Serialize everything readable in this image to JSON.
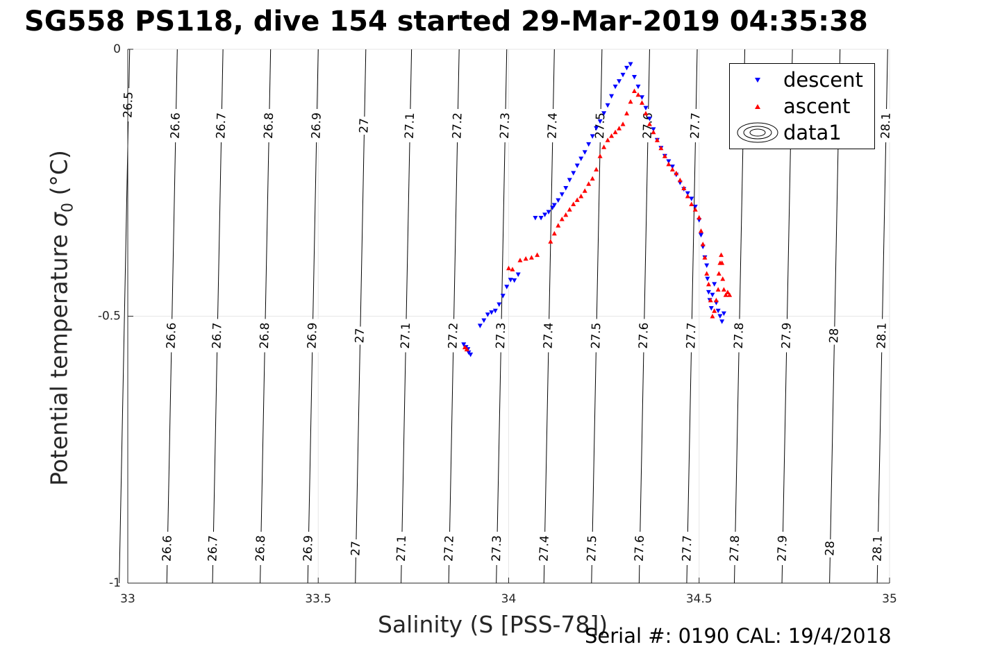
{
  "title": "SG558 PS118, dive 154 started 29-Mar-2019 04:35:38",
  "xlabel": "Salinity (S [PSS-78])",
  "ylabel": "Potential temperature σ₀ (°C)",
  "serial_text": "Serial #: 0190  CAL: 19/4/2018",
  "chart_data": {
    "type": "scatter",
    "xlim": [
      33,
      35
    ],
    "ylim": [
      -1,
      0
    ],
    "x_ticks": [
      "33",
      "33.5",
      "34",
      "34.5",
      "35"
    ],
    "y_ticks": [
      "0",
      "-0.5",
      "-1"
    ],
    "grid": true,
    "legend": {
      "position": "top-right",
      "entries": [
        "descent",
        "ascent",
        "data1"
      ]
    },
    "colors": {
      "descent": "#0000ff",
      "ascent": "#ff0000",
      "contour": "#000000",
      "grid": "#e6e6e6"
    },
    "density_contours": {
      "levels": [
        "26.5",
        "26.6",
        "26.7",
        "26.8",
        "26.9",
        "27",
        "27.1",
        "27.2",
        "27.3",
        "27.4",
        "27.5",
        "27.6",
        "27.7",
        "27.8",
        "27.9",
        "28",
        "28.1"
      ],
      "lines": [
        {
          "label": "26.5",
          "top_x": 33.005,
          "label_y": [
            -0.24
          ]
        },
        {
          "label": "26.6",
          "top_x": 33.13,
          "label_y": [
            -0.28,
            -0.73,
            -1.28
          ]
        },
        {
          "label": "26.7",
          "top_x": 33.25,
          "label_y": [
            -0.28,
            -0.73,
            -1.28
          ]
        },
        {
          "label": "26.8",
          "top_x": 33.375,
          "label_y": [
            -0.28,
            -0.73,
            -1.28
          ]
        },
        {
          "label": "26.9",
          "top_x": 33.5,
          "label_y": [
            -0.28,
            -0.73,
            -1.28
          ]
        },
        {
          "label": "27",
          "top_x": 33.625,
          "label_y": [
            -0.28,
            -0.73,
            -1.28
          ]
        },
        {
          "label": "27.1",
          "top_x": 33.745,
          "label_y": [
            -0.28,
            -0.73,
            -1.28
          ]
        },
        {
          "label": "27.2",
          "top_x": 33.87,
          "label_y": [
            -0.28,
            -0.73,
            -1.28
          ]
        },
        {
          "label": "27.3",
          "top_x": 33.995,
          "label_y": [
            -0.28,
            -0.73,
            -1.28
          ]
        },
        {
          "label": "27.4",
          "top_x": 34.12,
          "label_y": [
            -0.28,
            -0.73,
            -1.28
          ]
        },
        {
          "label": "27.5",
          "top_x": 34.245,
          "label_y": [
            -0.28,
            -0.73,
            -1.28
          ]
        },
        {
          "label": "27.6",
          "top_x": 34.37,
          "label_y": [
            -0.28,
            -0.73,
            -1.28
          ]
        },
        {
          "label": "27.7",
          "top_x": 34.495,
          "label_y": [
            -0.28,
            -0.73,
            -1.28
          ]
        },
        {
          "label": "27.8",
          "top_x": 34.62,
          "label_y": [
            -0.73,
            -1.28
          ]
        },
        {
          "label": "27.9",
          "top_x": 34.745,
          "label_y": [
            -0.73,
            -1.28
          ]
        },
        {
          "label": "28",
          "top_x": 34.87,
          "label_y": [
            -0.73,
            -1.28
          ]
        },
        {
          "label": "28.1",
          "top_x": 34.995,
          "label_y": [
            -0.28,
            -0.73,
            -1.28
          ]
        }
      ]
    },
    "series": [
      {
        "name": "descent",
        "marker": "triangle-down",
        "points": [
          [
            33.895,
            -0.568
          ],
          [
            33.9,
            -0.572
          ],
          [
            33.893,
            -0.562
          ],
          [
            33.888,
            -0.558
          ],
          [
            33.882,
            -0.553
          ],
          [
            33.925,
            -0.518
          ],
          [
            33.935,
            -0.508
          ],
          [
            33.945,
            -0.497
          ],
          [
            33.955,
            -0.493
          ],
          [
            33.965,
            -0.49
          ],
          [
            33.975,
            -0.478
          ],
          [
            33.985,
            -0.462
          ],
          [
            33.995,
            -0.445
          ],
          [
            34.005,
            -0.432
          ],
          [
            34.015,
            -0.433
          ],
          [
            34.025,
            -0.422
          ],
          [
            34.07,
            -0.316
          ],
          [
            34.085,
            -0.316
          ],
          [
            34.095,
            -0.31
          ],
          [
            34.105,
            -0.305
          ],
          [
            34.115,
            -0.297
          ],
          [
            34.12,
            -0.292
          ],
          [
            34.13,
            -0.283
          ],
          [
            34.14,
            -0.272
          ],
          [
            34.15,
            -0.26
          ],
          [
            34.16,
            -0.245
          ],
          [
            34.17,
            -0.232
          ],
          [
            34.18,
            -0.218
          ],
          [
            34.19,
            -0.205
          ],
          [
            34.2,
            -0.193
          ],
          [
            34.21,
            -0.178
          ],
          [
            34.22,
            -0.163
          ],
          [
            34.23,
            -0.148
          ],
          [
            34.24,
            -0.135
          ],
          [
            34.25,
            -0.12
          ],
          [
            34.26,
            -0.105
          ],
          [
            34.27,
            -0.088
          ],
          [
            34.28,
            -0.07
          ],
          [
            34.29,
            -0.06
          ],
          [
            34.3,
            -0.048
          ],
          [
            34.31,
            -0.035
          ],
          [
            34.32,
            -0.028
          ],
          [
            34.33,
            -0.052
          ],
          [
            34.34,
            -0.07
          ],
          [
            34.35,
            -0.09
          ],
          [
            34.36,
            -0.11
          ],
          [
            34.37,
            -0.13
          ],
          [
            34.38,
            -0.15
          ],
          [
            34.39,
            -0.17
          ],
          [
            34.4,
            -0.185
          ],
          [
            34.41,
            -0.2
          ],
          [
            34.42,
            -0.21
          ],
          [
            34.43,
            -0.22
          ],
          [
            34.44,
            -0.235
          ],
          [
            34.45,
            -0.25
          ],
          [
            34.46,
            -0.262
          ],
          [
            34.47,
            -0.27
          ],
          [
            34.48,
            -0.28
          ],
          [
            34.49,
            -0.295
          ],
          [
            34.5,
            -0.32
          ],
          [
            34.505,
            -0.348
          ],
          [
            34.51,
            -0.37
          ],
          [
            34.515,
            -0.39
          ],
          [
            34.52,
            -0.405
          ],
          [
            34.522,
            -0.43
          ],
          [
            34.525,
            -0.455
          ],
          [
            34.528,
            -0.47
          ],
          [
            34.532,
            -0.485
          ],
          [
            34.535,
            -0.46
          ],
          [
            34.54,
            -0.44
          ],
          [
            34.545,
            -0.475
          ],
          [
            34.55,
            -0.49
          ],
          [
            34.555,
            -0.5
          ],
          [
            34.56,
            -0.51
          ],
          [
            34.565,
            -0.495
          ]
        ]
      },
      {
        "name": "ascent",
        "marker": "triangle-up",
        "points": [
          [
            33.885,
            -0.558
          ],
          [
            33.89,
            -0.562
          ],
          [
            34.0,
            -0.41
          ],
          [
            34.01,
            -0.412
          ],
          [
            34.03,
            -0.395
          ],
          [
            34.045,
            -0.392
          ],
          [
            34.06,
            -0.39
          ],
          [
            34.075,
            -0.385
          ],
          [
            34.11,
            -0.36
          ],
          [
            34.12,
            -0.345
          ],
          [
            34.13,
            -0.33
          ],
          [
            34.14,
            -0.318
          ],
          [
            34.15,
            -0.31
          ],
          [
            34.16,
            -0.3
          ],
          [
            34.17,
            -0.29
          ],
          [
            34.18,
            -0.282
          ],
          [
            34.19,
            -0.275
          ],
          [
            34.2,
            -0.265
          ],
          [
            34.21,
            -0.252
          ],
          [
            34.22,
            -0.242
          ],
          [
            34.23,
            -0.225
          ],
          [
            34.24,
            -0.2
          ],
          [
            34.25,
            -0.183
          ],
          [
            34.26,
            -0.17
          ],
          [
            34.27,
            -0.162
          ],
          [
            34.28,
            -0.155
          ],
          [
            34.29,
            -0.148
          ],
          [
            34.3,
            -0.14
          ],
          [
            34.31,
            -0.12
          ],
          [
            34.32,
            -0.098
          ],
          [
            34.33,
            -0.078
          ],
          [
            34.34,
            -0.085
          ],
          [
            34.35,
            -0.1
          ],
          [
            34.36,
            -0.12
          ],
          [
            34.37,
            -0.14
          ],
          [
            34.38,
            -0.155
          ],
          [
            34.39,
            -0.17
          ],
          [
            34.4,
            -0.185
          ],
          [
            34.41,
            -0.2
          ],
          [
            34.42,
            -0.215
          ],
          [
            34.43,
            -0.225
          ],
          [
            34.44,
            -0.232
          ],
          [
            34.45,
            -0.245
          ],
          [
            34.46,
            -0.26
          ],
          [
            34.47,
            -0.275
          ],
          [
            34.48,
            -0.29
          ],
          [
            34.49,
            -0.3
          ],
          [
            34.5,
            -0.315
          ],
          [
            34.505,
            -0.34
          ],
          [
            34.51,
            -0.365
          ],
          [
            34.515,
            -0.39
          ],
          [
            34.52,
            -0.42
          ],
          [
            34.525,
            -0.44
          ],
          [
            34.53,
            -0.47
          ],
          [
            34.535,
            -0.5
          ],
          [
            34.54,
            -0.49
          ],
          [
            34.545,
            -0.47
          ],
          [
            34.55,
            -0.45
          ],
          [
            34.552,
            -0.42
          ],
          [
            34.555,
            -0.4
          ],
          [
            34.558,
            -0.385
          ],
          [
            34.56,
            -0.4
          ],
          [
            34.562,
            -0.43
          ],
          [
            34.565,
            -0.45
          ],
          [
            34.57,
            -0.46
          ],
          [
            34.575,
            -0.455
          ],
          [
            34.58,
            -0.46
          ]
        ]
      }
    ]
  }
}
